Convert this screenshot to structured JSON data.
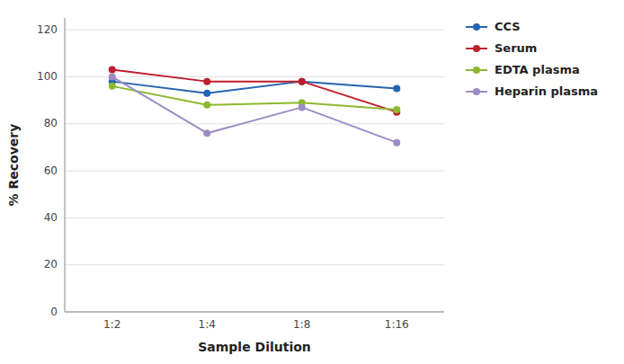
{
  "chart_data": {
    "type": "line",
    "xlabel": "Sample Dilution",
    "ylabel": "% Recovery",
    "categories": [
      "1:2",
      "1:4",
      "1:8",
      "1:16"
    ],
    "series": [
      {
        "name": "CCS",
        "color": "#2464AE",
        "values": [
          98,
          93,
          98,
          95
        ]
      },
      {
        "name": "Serum",
        "color": "#BE1E2D",
        "values": [
          103,
          98,
          98,
          85
        ]
      },
      {
        "name": "EDTA plasma",
        "color": "#8DB92E",
        "values": [
          96,
          88,
          89,
          86
        ]
      },
      {
        "name": "Heparin plasma",
        "color": "#9B8DC4",
        "values": [
          100,
          76,
          87,
          72
        ]
      }
    ],
    "ylim": [
      0,
      125
    ],
    "yticks": [
      0,
      20,
      40,
      60,
      80,
      100,
      120
    ],
    "grid": true,
    "legend": "right",
    "marker": "circle"
  }
}
